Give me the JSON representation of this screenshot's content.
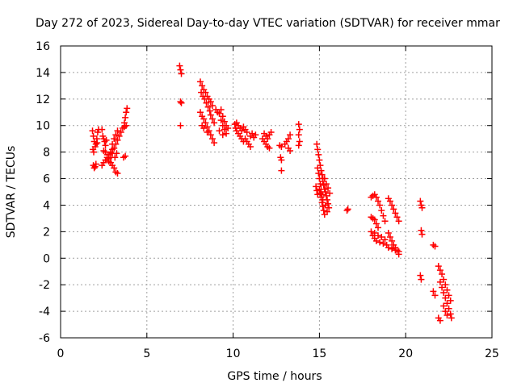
{
  "chart_data": {
    "type": "scatter",
    "title": "Day 272 of 2023, Sidereal Day-to-day VTEC variation (SDTVAR) for receiver mmar",
    "xlabel": "GPS time / hours",
    "ylabel": "SDTVAR / TECUs",
    "xlim": [
      0,
      25
    ],
    "ylim": [
      -6,
      16
    ],
    "xticks": [
      "0",
      "5",
      "10",
      "15",
      "20",
      "25"
    ],
    "yticks": [
      "-6",
      "-4",
      "-2",
      "0",
      "2",
      "4",
      "6",
      "8",
      "10",
      "12",
      "14",
      "16"
    ],
    "grid": true,
    "marker": "+",
    "color": "#ff0000",
    "series": [
      {
        "name": "SDTVAR",
        "points": [
          [
            1.85,
            9.6
          ],
          [
            1.9,
            9.2
          ],
          [
            1.95,
            8.8
          ],
          [
            2.0,
            8.4
          ],
          [
            2.05,
            8.6
          ],
          [
            2.1,
            9.0
          ],
          [
            2.15,
            9.5
          ],
          [
            2.2,
            9.7
          ],
          [
            1.9,
            7.0
          ],
          [
            1.95,
            6.8
          ],
          [
            2.0,
            6.9
          ],
          [
            2.05,
            7.1
          ],
          [
            1.88,
            8.2
          ],
          [
            1.92,
            8.0
          ],
          [
            2.12,
            8.7
          ],
          [
            2.4,
            9.7
          ],
          [
            2.45,
            9.2
          ],
          [
            2.5,
            9.0
          ],
          [
            2.55,
            8.8
          ],
          [
            2.6,
            8.5
          ],
          [
            2.65,
            8.9
          ],
          [
            2.4,
            7.0
          ],
          [
            2.5,
            7.2
          ],
          [
            2.6,
            7.4
          ],
          [
            2.7,
            7.6
          ],
          [
            2.8,
            7.8
          ],
          [
            2.9,
            8.0
          ],
          [
            3.0,
            8.2
          ],
          [
            2.5,
            8.1
          ],
          [
            2.6,
            8.0
          ],
          [
            2.7,
            7.8
          ],
          [
            2.8,
            7.5
          ],
          [
            2.9,
            7.2
          ],
          [
            3.0,
            7.0
          ],
          [
            3.1,
            6.8
          ],
          [
            3.2,
            6.5
          ],
          [
            3.3,
            6.4
          ],
          [
            2.8,
            7.3
          ],
          [
            2.9,
            7.6
          ],
          [
            3.0,
            7.9
          ],
          [
            3.1,
            8.3
          ],
          [
            3.2,
            8.6
          ],
          [
            3.3,
            8.9
          ],
          [
            3.4,
            9.2
          ],
          [
            3.5,
            9.5
          ],
          [
            3.6,
            9.8
          ],
          [
            3.0,
            8.6
          ],
          [
            3.1,
            9.0
          ],
          [
            3.2,
            9.3
          ],
          [
            3.3,
            9.6
          ],
          [
            3.15,
            7.6
          ],
          [
            3.25,
            7.9
          ],
          [
            3.7,
            10.2
          ],
          [
            3.75,
            10.6
          ],
          [
            3.8,
            11.0
          ],
          [
            3.85,
            11.3
          ],
          [
            3.7,
            9.9
          ],
          [
            3.8,
            10.0
          ],
          [
            3.65,
            7.6
          ],
          [
            3.75,
            7.7
          ],
          [
            6.9,
            14.5
          ],
          [
            6.95,
            14.2
          ],
          [
            7.0,
            13.9
          ],
          [
            6.95,
            11.8
          ],
          [
            7.0,
            11.7
          ],
          [
            6.95,
            10.0
          ],
          [
            8.1,
            13.3
          ],
          [
            8.2,
            13.0
          ],
          [
            8.3,
            12.7
          ],
          [
            8.4,
            12.5
          ],
          [
            8.5,
            12.2
          ],
          [
            8.6,
            12.0
          ],
          [
            8.7,
            11.8
          ],
          [
            8.8,
            11.5
          ],
          [
            8.15,
            12.5
          ],
          [
            8.25,
            12.2
          ],
          [
            8.35,
            12.0
          ],
          [
            8.45,
            11.7
          ],
          [
            8.55,
            11.4
          ],
          [
            8.65,
            11.1
          ],
          [
            8.1,
            11.0
          ],
          [
            8.2,
            10.7
          ],
          [
            8.3,
            10.5
          ],
          [
            8.4,
            10.2
          ],
          [
            8.5,
            9.9
          ],
          [
            8.6,
            9.6
          ],
          [
            8.7,
            9.3
          ],
          [
            8.8,
            9.0
          ],
          [
            8.9,
            8.7
          ],
          [
            8.2,
            10.0
          ],
          [
            8.3,
            9.8
          ],
          [
            8.5,
            9.5
          ],
          [
            8.7,
            10.8
          ],
          [
            8.8,
            10.5
          ],
          [
            8.9,
            10.2
          ],
          [
            9.0,
            11.2
          ],
          [
            9.1,
            11.0
          ],
          [
            9.2,
            10.9
          ],
          [
            9.3,
            11.2
          ],
          [
            9.4,
            10.7
          ],
          [
            9.5,
            10.3
          ],
          [
            9.6,
            10.0
          ],
          [
            9.7,
            9.8
          ],
          [
            9.3,
            10.4
          ],
          [
            9.4,
            10.0
          ],
          [
            9.5,
            9.7
          ],
          [
            9.6,
            9.4
          ],
          [
            9.2,
            9.6
          ],
          [
            9.4,
            9.3
          ],
          [
            10.1,
            10.1
          ],
          [
            10.15,
            9.8
          ],
          [
            10.2,
            9.6
          ],
          [
            10.3,
            9.4
          ],
          [
            10.4,
            9.2
          ],
          [
            10.5,
            9.0
          ],
          [
            10.6,
            8.8
          ],
          [
            10.2,
            10.2
          ],
          [
            10.3,
            10.0
          ],
          [
            10.4,
            9.8
          ],
          [
            10.5,
            9.6
          ],
          [
            10.6,
            9.9
          ],
          [
            10.7,
            9.7
          ],
          [
            10.8,
            9.5
          ],
          [
            10.7,
            9.0
          ],
          [
            10.8,
            8.8
          ],
          [
            10.9,
            8.6
          ],
          [
            11.0,
            8.4
          ],
          [
            11.0,
            9.2
          ],
          [
            11.1,
            9.4
          ],
          [
            11.2,
            9.1
          ],
          [
            11.3,
            9.3
          ],
          [
            11.7,
            9.0
          ],
          [
            11.8,
            8.8
          ],
          [
            11.9,
            8.6
          ],
          [
            12.0,
            8.4
          ],
          [
            12.1,
            8.3
          ],
          [
            11.8,
            9.4
          ],
          [
            11.9,
            9.2
          ],
          [
            12.0,
            9.0
          ],
          [
            12.1,
            9.3
          ],
          [
            12.2,
            9.5
          ],
          [
            12.7,
            8.5
          ],
          [
            12.8,
            8.4
          ],
          [
            12.75,
            7.6
          ],
          [
            12.8,
            7.4
          ],
          [
            12.8,
            6.6
          ],
          [
            13.0,
            8.6
          ],
          [
            13.1,
            8.8
          ],
          [
            13.2,
            9.0
          ],
          [
            13.3,
            9.3
          ],
          [
            13.2,
            8.3
          ],
          [
            13.3,
            8.1
          ],
          [
            13.8,
            10.1
          ],
          [
            13.85,
            9.7
          ],
          [
            13.8,
            9.3
          ],
          [
            13.85,
            8.8
          ],
          [
            13.8,
            8.5
          ],
          [
            14.85,
            8.6
          ],
          [
            14.9,
            8.2
          ],
          [
            14.95,
            7.8
          ],
          [
            15.0,
            7.4
          ],
          [
            15.05,
            7.0
          ],
          [
            15.1,
            6.6
          ],
          [
            15.15,
            6.3
          ],
          [
            15.2,
            6.0
          ],
          [
            14.9,
            6.8
          ],
          [
            14.95,
            6.4
          ],
          [
            15.0,
            6.0
          ],
          [
            15.05,
            5.6
          ],
          [
            15.1,
            5.2
          ],
          [
            15.15,
            4.8
          ],
          [
            15.2,
            4.4
          ],
          [
            15.0,
            5.2
          ],
          [
            15.05,
            4.9
          ],
          [
            15.1,
            4.6
          ],
          [
            15.15,
            4.2
          ],
          [
            15.2,
            3.9
          ],
          [
            15.25,
            3.6
          ],
          [
            15.3,
            3.3
          ],
          [
            15.2,
            5.8
          ],
          [
            15.25,
            5.5
          ],
          [
            15.3,
            5.2
          ],
          [
            15.35,
            5.0
          ],
          [
            15.4,
            4.7
          ],
          [
            15.45,
            4.4
          ],
          [
            15.5,
            4.1
          ],
          [
            15.55,
            3.8
          ],
          [
            15.3,
            6.0
          ],
          [
            15.4,
            5.6
          ],
          [
            15.5,
            5.3
          ],
          [
            15.6,
            4.9
          ],
          [
            15.35,
            4.0
          ],
          [
            15.45,
            3.5
          ],
          [
            14.8,
            5.4
          ],
          [
            14.85,
            5.1
          ],
          [
            14.9,
            4.8
          ],
          [
            16.6,
            3.6
          ],
          [
            16.65,
            3.7
          ],
          [
            18.0,
            4.6
          ],
          [
            18.1,
            4.7
          ],
          [
            18.2,
            4.8
          ],
          [
            18.3,
            4.6
          ],
          [
            18.4,
            4.3
          ],
          [
            18.5,
            4.0
          ],
          [
            18.6,
            3.6
          ],
          [
            18.7,
            3.2
          ],
          [
            18.8,
            2.8
          ],
          [
            18.0,
            3.1
          ],
          [
            18.1,
            3.0
          ],
          [
            18.2,
            2.9
          ],
          [
            18.3,
            2.6
          ],
          [
            18.4,
            2.3
          ],
          [
            18.0,
            2.0
          ],
          [
            18.1,
            1.7
          ],
          [
            18.2,
            1.5
          ],
          [
            18.3,
            1.3
          ],
          [
            18.5,
            1.2
          ],
          [
            18.7,
            1.1
          ],
          [
            18.9,
            1.0
          ],
          [
            18.2,
            1.9
          ],
          [
            18.4,
            1.7
          ],
          [
            18.6,
            1.6
          ],
          [
            18.8,
            1.4
          ],
          [
            19.0,
            4.5
          ],
          [
            19.1,
            4.3
          ],
          [
            19.2,
            4.0
          ],
          [
            19.3,
            3.7
          ],
          [
            19.4,
            3.4
          ],
          [
            19.5,
            3.1
          ],
          [
            19.6,
            2.8
          ],
          [
            19.0,
            1.9
          ],
          [
            19.1,
            1.6
          ],
          [
            19.2,
            1.3
          ],
          [
            19.3,
            1.0
          ],
          [
            19.4,
            0.8
          ],
          [
            19.5,
            0.6
          ],
          [
            19.6,
            0.3
          ],
          [
            19.0,
            0.8
          ],
          [
            19.2,
            0.7
          ],
          [
            19.4,
            0.6
          ],
          [
            19.6,
            0.5
          ],
          [
            20.85,
            4.3
          ],
          [
            20.9,
            4.0
          ],
          [
            20.95,
            3.8
          ],
          [
            20.9,
            2.1
          ],
          [
            20.95,
            1.8
          ],
          [
            20.85,
            -1.3
          ],
          [
            20.9,
            -1.6
          ],
          [
            21.6,
            1.0
          ],
          [
            21.7,
            0.9
          ],
          [
            21.6,
            -2.5
          ],
          [
            21.7,
            -2.8
          ],
          [
            21.9,
            -0.6
          ],
          [
            22.0,
            -0.9
          ],
          [
            22.1,
            -1.2
          ],
          [
            22.2,
            -1.6
          ],
          [
            22.3,
            -2.0
          ],
          [
            22.4,
            -2.4
          ],
          [
            22.5,
            -2.8
          ],
          [
            22.6,
            -3.2
          ],
          [
            22.0,
            -1.8
          ],
          [
            22.1,
            -2.2
          ],
          [
            22.2,
            -2.6
          ],
          [
            22.3,
            -3.0
          ],
          [
            22.4,
            -3.4
          ],
          [
            22.5,
            -3.8
          ],
          [
            22.6,
            -4.2
          ],
          [
            22.65,
            -4.5
          ],
          [
            22.2,
            -3.6
          ],
          [
            22.3,
            -4.0
          ],
          [
            22.4,
            -4.3
          ],
          [
            21.9,
            -4.5
          ],
          [
            22.0,
            -4.7
          ]
        ]
      }
    ]
  }
}
